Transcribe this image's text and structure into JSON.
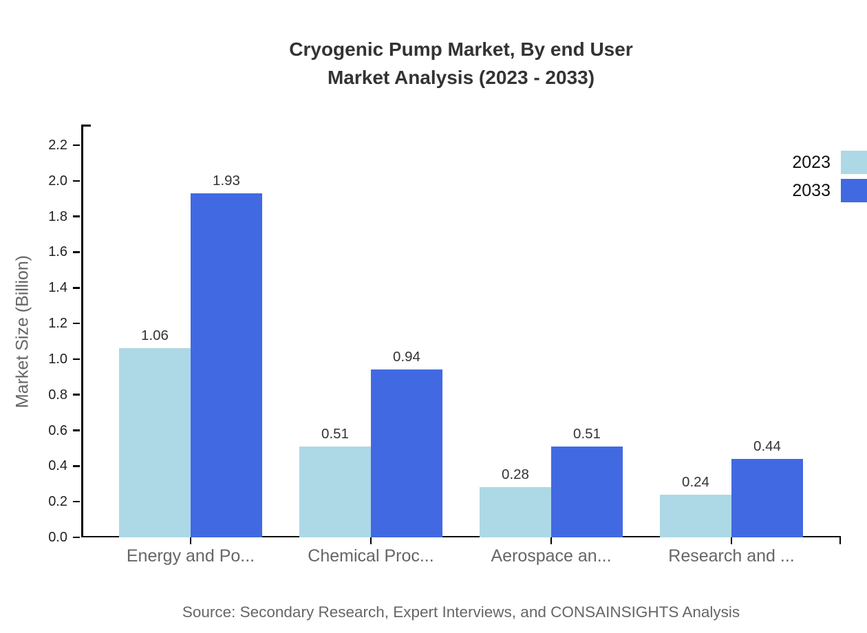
{
  "title": {
    "line1": "Cryogenic Pump Market, By end User",
    "line2": "Market Analysis (2023 - 2033)"
  },
  "source_note": "Source: Secondary Research, Expert Interviews, and CONSAINSIGHTS Analysis",
  "colors": {
    "series_2023": "#ADD8E6",
    "series_2033": "#4169E1",
    "title_text": "#333333",
    "axis_line": "#000000",
    "tick_label_text": "#222222",
    "category_label_text": "#666666",
    "value_label_text": "#333333",
    "source_text": "#666666"
  },
  "chart_data": {
    "type": "bar",
    "title": "Cryogenic Pump Market, By end User Market Analysis (2023 - 2033)",
    "categories": [
      "Energy and Po...",
      "Chemical Proc...",
      "Aerospace an...",
      "Research and ..."
    ],
    "series": [
      {
        "name": "2023",
        "color": "#ADD8E6",
        "values": [
          1.06,
          0.51,
          0.28,
          0.24
        ]
      },
      {
        "name": "2033",
        "color": "#4169E1",
        "values": [
          1.93,
          0.94,
          0.51,
          0.44
        ]
      }
    ],
    "xlabel": "",
    "ylabel": "Market Size (Billion)",
    "ylim": [
      0.0,
      2.3
    ],
    "yticks": [
      0.0,
      0.2,
      0.4,
      0.6,
      0.8,
      1.0,
      1.2,
      1.4,
      1.6,
      1.8,
      2.0,
      2.2
    ],
    "grid": false,
    "value_labels": true,
    "legend_position": "top-right"
  }
}
